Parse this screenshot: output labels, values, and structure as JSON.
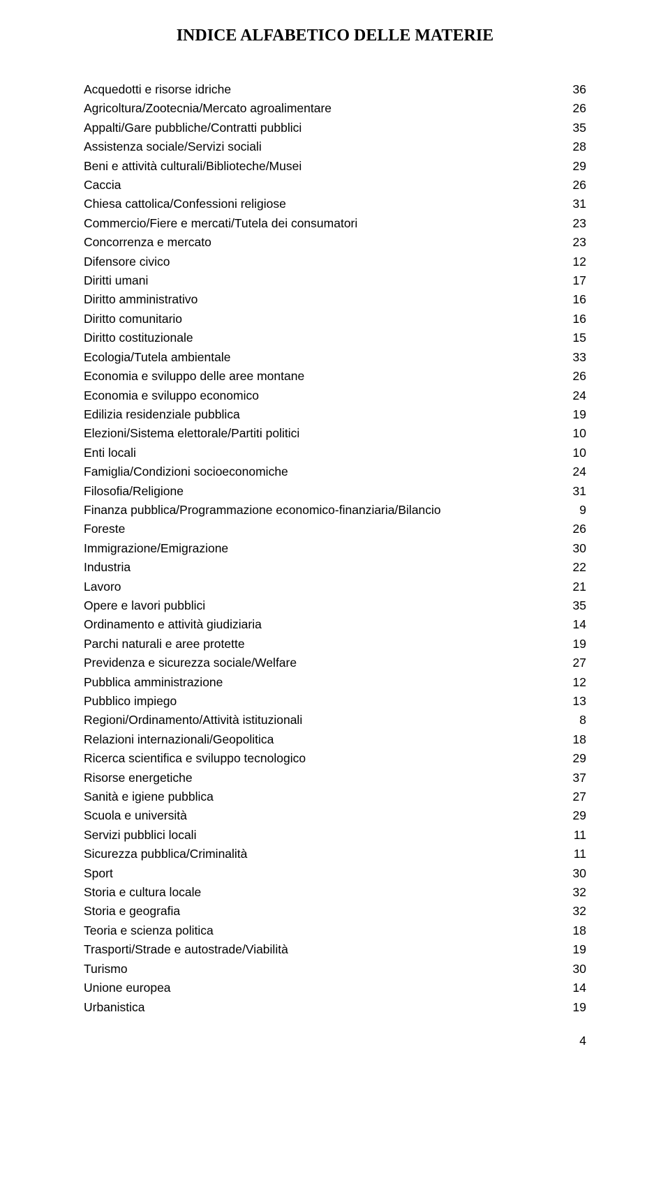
{
  "title": "INDICE ALFABETICO DELLE MATERIE",
  "title_fontsize": 24,
  "body_fontsize": 17.5,
  "line_height": 27.4,
  "text_color": "#000000",
  "background_color": "#ffffff",
  "page_number": "4",
  "entries": [
    {
      "label": "Acquedotti e risorse idriche",
      "page": "36"
    },
    {
      "label": "Agricoltura/Zootecnia/Mercato agroalimentare",
      "page": "26"
    },
    {
      "label": "Appalti/Gare pubbliche/Contratti pubblici",
      "page": "35"
    },
    {
      "label": "Assistenza sociale/Servizi sociali",
      "page": "28"
    },
    {
      "label": "Beni e attività culturali/Biblioteche/Musei",
      "page": "29"
    },
    {
      "label": "Caccia",
      "page": "26"
    },
    {
      "label": "Chiesa cattolica/Confessioni religiose",
      "page": "31"
    },
    {
      "label": "Commercio/Fiere e mercati/Tutela dei consumatori",
      "page": "23"
    },
    {
      "label": "Concorrenza e mercato",
      "page": "23"
    },
    {
      "label": "Difensore civico",
      "page": "12"
    },
    {
      "label": "Diritti umani",
      "page": "17"
    },
    {
      "label": "Diritto amministrativo",
      "page": "16"
    },
    {
      "label": "Diritto comunitario",
      "page": "16"
    },
    {
      "label": "Diritto costituzionale",
      "page": "15"
    },
    {
      "label": "Ecologia/Tutela ambientale",
      "page": "33"
    },
    {
      "label": "Economia e sviluppo delle aree montane",
      "page": "26"
    },
    {
      "label": "Economia e sviluppo economico",
      "page": "24"
    },
    {
      "label": "Edilizia residenziale pubblica",
      "page": "19"
    },
    {
      "label": "Elezioni/Sistema elettorale/Partiti politici",
      "page": "10"
    },
    {
      "label": "Enti locali",
      "page": "10"
    },
    {
      "label": "Famiglia/Condizioni socioeconomiche",
      "page": "24"
    },
    {
      "label": "Filosofia/Religione",
      "page": "31"
    },
    {
      "label": "Finanza pubblica/Programmazione economico-finanziaria/Bilancio",
      "page": "9"
    },
    {
      "label": "Foreste",
      "page": "26"
    },
    {
      "label": "Immigrazione/Emigrazione",
      "page": "30"
    },
    {
      "label": "Industria",
      "page": "22"
    },
    {
      "label": "Lavoro",
      "page": "21"
    },
    {
      "label": "Opere e lavori pubblici",
      "page": "35"
    },
    {
      "label": "Ordinamento e attività giudiziaria",
      "page": "14"
    },
    {
      "label": "Parchi naturali e aree protette",
      "page": "19"
    },
    {
      "label": "Previdenza e sicurezza sociale/Welfare",
      "page": "27"
    },
    {
      "label": "Pubblica amministrazione",
      "page": "12"
    },
    {
      "label": "Pubblico impiego",
      "page": "13"
    },
    {
      "label": "Regioni/Ordinamento/Attività istituzionali",
      "page": "8"
    },
    {
      "label": "Relazioni internazionali/Geopolitica",
      "page": "18"
    },
    {
      "label": "Ricerca scientifica e sviluppo tecnologico",
      "page": "29"
    },
    {
      "label": "Risorse energetiche",
      "page": "37"
    },
    {
      "label": "Sanità e igiene pubblica",
      "page": "27"
    },
    {
      "label": "Scuola e università",
      "page": "29"
    },
    {
      "label": "Servizi pubblici locali",
      "page": "11"
    },
    {
      "label": "Sicurezza pubblica/Criminalità",
      "page": "11"
    },
    {
      "label": "Sport",
      "page": "30"
    },
    {
      "label": "Storia e cultura locale",
      "page": "32"
    },
    {
      "label": "Storia e geografia",
      "page": "32"
    },
    {
      "label": "Teoria e scienza politica",
      "page": "18"
    },
    {
      "label": "Trasporti/Strade e autostrade/Viabilità",
      "page": "19"
    },
    {
      "label": "Turismo",
      "page": "30"
    },
    {
      "label": "Unione europea",
      "page": "14"
    },
    {
      "label": "Urbanistica",
      "page": "19"
    }
  ]
}
